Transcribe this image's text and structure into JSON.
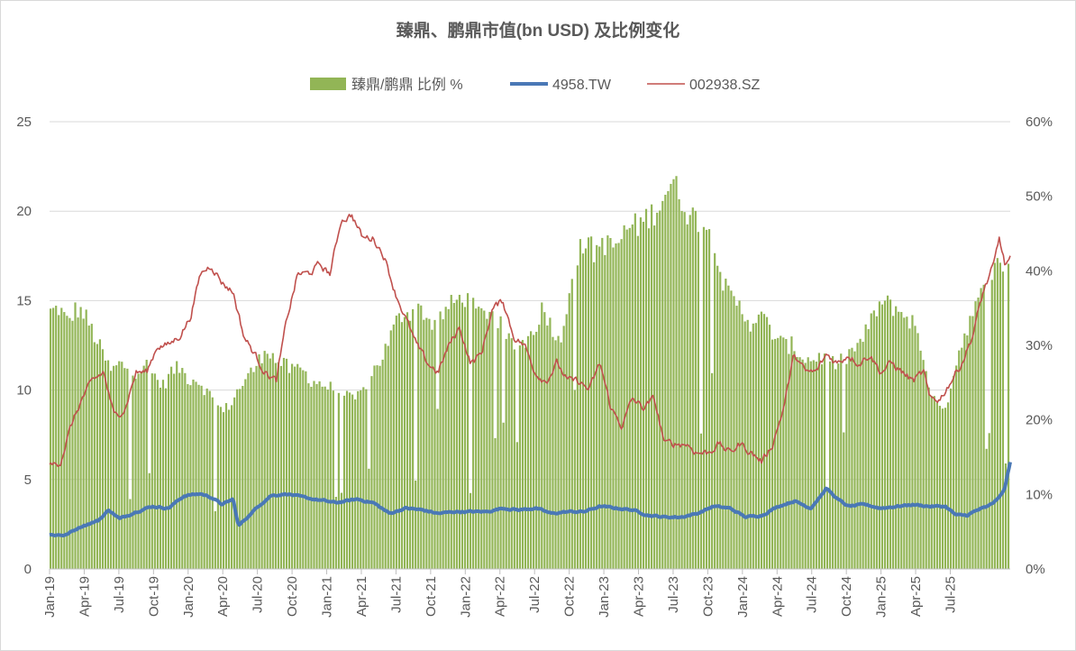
{
  "chart_data": {
    "type": "bar",
    "title": "臻鼎、鹏鼎市值(bn USD) 及比例变化",
    "x_ticks": [
      "Jan-19",
      "Apr-19",
      "Jul-19",
      "Oct-19",
      "Jan-20",
      "Apr-20",
      "Jul-20",
      "Oct-20",
      "Jan-21",
      "Apr-21",
      "Jul-21",
      "Oct-21",
      "Jan-22",
      "Apr-22",
      "Jul-22",
      "Oct-22",
      "Jan-23",
      "Apr-23",
      "Jul-23",
      "Oct-23",
      "Jan-24",
      "Apr-24",
      "Jul-24",
      "Oct-24",
      "Jan-25",
      "Apr-25",
      "Jul-25"
    ],
    "y_left": {
      "min": 0,
      "max": 25,
      "ticks": [
        "0",
        "5",
        "10",
        "15",
        "20",
        "25"
      ]
    },
    "y_right": {
      "min": 0,
      "max": 0.6,
      "ticks": [
        "0%",
        "10%",
        "20%",
        "30%",
        "40%",
        "50%",
        "60%"
      ]
    },
    "grid": "horizontal",
    "legend_position": "top",
    "x_end": "Oct-25",
    "series": [
      {
        "name": "臻鼎/鹏鼎 比例 %",
        "kind": "bar",
        "axis": "right",
        "color": "#92b556",
        "values": [
          [
            0,
            0.345
          ],
          [
            1,
            0.35
          ],
          [
            2,
            0.33
          ],
          [
            3,
            0.35
          ],
          [
            4,
            0.34
          ],
          [
            5,
            0.315
          ],
          [
            6,
            0.29
          ],
          [
            7,
            0.265
          ],
          [
            8,
            0.275
          ],
          [
            9,
            0.27
          ],
          [
            10,
            0.265
          ],
          [
            11,
            0.275
          ],
          [
            12,
            0.26
          ],
          [
            13,
            0.245
          ],
          [
            14,
            0.265
          ],
          [
            15,
            0.27
          ],
          [
            16,
            0.255
          ],
          [
            17,
            0.255
          ],
          [
            18,
            0.24
          ],
          [
            19,
            0.225
          ],
          [
            20,
            0.21
          ],
          [
            21,
            0.225
          ],
          [
            22,
            0.245
          ],
          [
            23,
            0.26
          ],
          [
            24,
            0.275
          ],
          [
            25,
            0.3
          ],
          [
            26,
            0.28
          ],
          [
            27,
            0.275
          ],
          [
            28,
            0.265
          ],
          [
            29,
            0.27
          ],
          [
            30,
            0.255
          ],
          [
            31,
            0.25
          ],
          [
            32,
            0.245
          ],
          [
            33,
            0.24
          ],
          [
            34,
            0.235
          ],
          [
            35,
            0.225
          ],
          [
            36,
            0.235
          ],
          [
            37,
            0.26
          ],
          [
            38,
            0.275
          ],
          [
            39,
            0.3
          ],
          [
            40,
            0.33
          ],
          [
            41,
            0.345
          ],
          [
            42,
            0.345
          ],
          [
            43,
            0.35
          ],
          [
            44,
            0.33
          ],
          [
            45,
            0.335
          ],
          [
            46,
            0.35
          ],
          [
            47,
            0.36
          ],
          [
            48,
            0.365
          ],
          [
            49,
            0.35
          ],
          [
            50,
            0.34
          ],
          [
            51,
            0.35
          ],
          [
            52,
            0.33
          ],
          [
            53,
            0.305
          ],
          [
            54,
            0.3
          ],
          [
            55,
            0.305
          ],
          [
            56,
            0.32
          ],
          [
            57,
            0.35
          ],
          [
            58,
            0.33
          ],
          [
            59,
            0.3
          ],
          [
            60,
            0.37
          ],
          [
            61,
            0.42
          ],
          [
            62,
            0.44
          ],
          [
            63,
            0.425
          ],
          [
            64,
            0.44
          ],
          [
            65,
            0.43
          ],
          [
            66,
            0.44
          ],
          [
            67,
            0.46
          ],
          [
            68,
            0.46
          ],
          [
            69,
            0.47
          ],
          [
            70,
            0.48
          ],
          [
            71,
            0.5
          ],
          [
            72,
            0.52
          ],
          [
            73,
            0.5
          ],
          [
            74,
            0.475
          ],
          [
            75,
            0.47
          ],
          [
            76,
            0.46
          ],
          [
            77,
            0.44
          ],
          [
            78,
            0.38
          ],
          [
            79,
            0.36
          ],
          [
            80,
            0.35
          ],
          [
            81,
            0.33
          ],
          [
            82,
            0.34
          ],
          [
            83,
            0.33
          ],
          [
            84,
            0.31
          ],
          [
            85,
            0.3
          ],
          [
            86,
            0.3
          ],
          [
            87,
            0.285
          ],
          [
            88,
            0.28
          ],
          [
            89,
            0.285
          ],
          [
            90,
            0.28
          ],
          [
            91,
            0.275
          ],
          [
            92,
            0.28
          ],
          [
            93,
            0.295
          ],
          [
            94,
            0.305
          ],
          [
            95,
            0.33
          ],
          [
            96,
            0.355
          ],
          [
            97,
            0.355
          ],
          [
            98,
            0.35
          ],
          [
            99,
            0.34
          ],
          [
            100,
            0.33
          ],
          [
            101,
            0.29
          ],
          [
            102,
            0.24
          ],
          [
            103,
            0.21
          ],
          [
            104,
            0.23
          ],
          [
            105,
            0.28
          ],
          [
            106,
            0.32
          ],
          [
            107,
            0.345
          ],
          [
            108,
            0.37
          ],
          [
            109,
            0.395
          ],
          [
            110,
            0.41
          ],
          [
            111,
            0.41
          ]
        ]
      },
      {
        "name": "4958.TW",
        "kind": "line",
        "axis": "left",
        "color": "#4a78b6",
        "values": [
          [
            0,
            1.9
          ],
          [
            3,
            1.9
          ],
          [
            6,
            2.4
          ],
          [
            9,
            2.7
          ],
          [
            11,
            3.3
          ],
          [
            13,
            2.8
          ],
          [
            16,
            3.2
          ],
          [
            19,
            3.5
          ],
          [
            22,
            3.4
          ],
          [
            25,
            4.1
          ],
          [
            28,
            4.2
          ],
          [
            30,
            4.0
          ],
          [
            32,
            3.6
          ],
          [
            34,
            3.9
          ],
          [
            35,
            2.4
          ],
          [
            37,
            3.0
          ],
          [
            39,
            3.6
          ],
          [
            41,
            4.1
          ],
          [
            44,
            4.2
          ],
          [
            47,
            4.0
          ],
          [
            49,
            3.9
          ],
          [
            51,
            3.8
          ],
          [
            53,
            3.7
          ],
          [
            55,
            3.8
          ],
          [
            57,
            3.9
          ],
          [
            60,
            3.7
          ],
          [
            63,
            3.1
          ],
          [
            66,
            3.4
          ],
          [
            69,
            3.3
          ],
          [
            72,
            3.1
          ],
          [
            75,
            3.2
          ],
          [
            78,
            3.2
          ],
          [
            81,
            3.2
          ],
          [
            84,
            3.4
          ],
          [
            87,
            3.3
          ],
          [
            90,
            3.4
          ],
          [
            93,
            3.1
          ],
          [
            96,
            3.2
          ],
          [
            99,
            3.2
          ],
          [
            102,
            3.5
          ],
          [
            105,
            3.4
          ],
          [
            108,
            3.3
          ],
          [
            111,
            3.0
          ],
          [
            114,
            2.9
          ],
          [
            117,
            2.9
          ],
          [
            120,
            3.1
          ],
          [
            123,
            3.5
          ],
          [
            126,
            3.4
          ],
          [
            129,
            2.9
          ],
          [
            132,
            3.0
          ],
          [
            135,
            3.5
          ],
          [
            138,
            3.8
          ],
          [
            141,
            3.4
          ],
          [
            144,
            4.5
          ],
          [
            146,
            3.9
          ],
          [
            148,
            3.5
          ],
          [
            151,
            3.6
          ],
          [
            154,
            3.4
          ],
          [
            157,
            3.5
          ],
          [
            160,
            3.6
          ],
          [
            163,
            3.5
          ],
          [
            166,
            3.5
          ],
          [
            168,
            3.0
          ],
          [
            170,
            3.0
          ],
          [
            172,
            3.3
          ],
          [
            174,
            3.5
          ],
          [
            176,
            4.0
          ],
          [
            177,
            4.5
          ],
          [
            178,
            6.0
          ]
        ]
      },
      {
        "name": "002938.SZ",
        "kind": "line",
        "axis": "left",
        "color": "#c0504d",
        "values": [
          [
            0,
            5.7
          ],
          [
            2,
            6.0
          ],
          [
            4,
            8.0
          ],
          [
            6,
            9.5
          ],
          [
            8,
            10.5
          ],
          [
            10,
            11.0
          ],
          [
            12,
            8.5
          ],
          [
            14,
            9.0
          ],
          [
            16,
            11.0
          ],
          [
            18,
            11.0
          ],
          [
            20,
            12.5
          ],
          [
            22,
            12.5
          ],
          [
            24,
            13.0
          ],
          [
            26,
            14.0
          ],
          [
            28,
            16.5
          ],
          [
            30,
            17.0
          ],
          [
            32,
            16.0
          ],
          [
            34,
            15.5
          ],
          [
            36,
            13.0
          ],
          [
            38,
            12.0
          ],
          [
            40,
            11.0
          ],
          [
            42,
            10.5
          ],
          [
            44,
            14.0
          ],
          [
            46,
            16.5
          ],
          [
            48,
            16.5
          ],
          [
            50,
            17.0
          ],
          [
            52,
            16.5
          ],
          [
            54,
            19.5
          ],
          [
            56,
            19.8
          ],
          [
            58,
            18.5
          ],
          [
            60,
            18.5
          ],
          [
            62,
            17.5
          ],
          [
            64,
            15.5
          ],
          [
            66,
            14.0
          ],
          [
            68,
            12.5
          ],
          [
            70,
            11.5
          ],
          [
            72,
            11.0
          ],
          [
            74,
            12.5
          ],
          [
            76,
            13.5
          ],
          [
            78,
            11.5
          ],
          [
            80,
            12.0
          ],
          [
            82,
            14.5
          ],
          [
            84,
            15.0
          ],
          [
            86,
            13.0
          ],
          [
            88,
            12.5
          ],
          [
            90,
            11.0
          ],
          [
            92,
            10.5
          ],
          [
            94,
            11.5
          ],
          [
            96,
            10.5
          ],
          [
            98,
            10.5
          ],
          [
            100,
            10.0
          ],
          [
            102,
            11.5
          ],
          [
            104,
            9.0
          ],
          [
            106,
            8.0
          ],
          [
            108,
            9.5
          ],
          [
            110,
            9.0
          ],
          [
            112,
            9.5
          ],
          [
            114,
            7.0
          ],
          [
            116,
            7.0
          ],
          [
            118,
            7.0
          ],
          [
            120,
            6.5
          ],
          [
            122,
            6.5
          ],
          [
            124,
            7.0
          ],
          [
            126,
            6.5
          ],
          [
            128,
            7.0
          ],
          [
            130,
            6.5
          ],
          [
            132,
            6.0
          ],
          [
            134,
            7.0
          ],
          [
            136,
            9.0
          ],
          [
            138,
            12.0
          ],
          [
            140,
            11.0
          ],
          [
            142,
            11.0
          ],
          [
            144,
            12.0
          ],
          [
            146,
            11.5
          ],
          [
            148,
            12.0
          ],
          [
            150,
            11.5
          ],
          [
            152,
            12.0
          ],
          [
            154,
            11.0
          ],
          [
            156,
            11.5
          ],
          [
            158,
            11.0
          ],
          [
            160,
            10.5
          ],
          [
            162,
            11.0
          ],
          [
            163,
            9.5
          ],
          [
            165,
            9.5
          ],
          [
            167,
            10.5
          ],
          [
            169,
            11.5
          ],
          [
            171,
            13.0
          ],
          [
            173,
            15.5
          ],
          [
            175,
            17.0
          ],
          [
            176,
            18.5
          ],
          [
            177,
            17.0
          ],
          [
            178,
            17.3
          ]
        ]
      }
    ]
  }
}
